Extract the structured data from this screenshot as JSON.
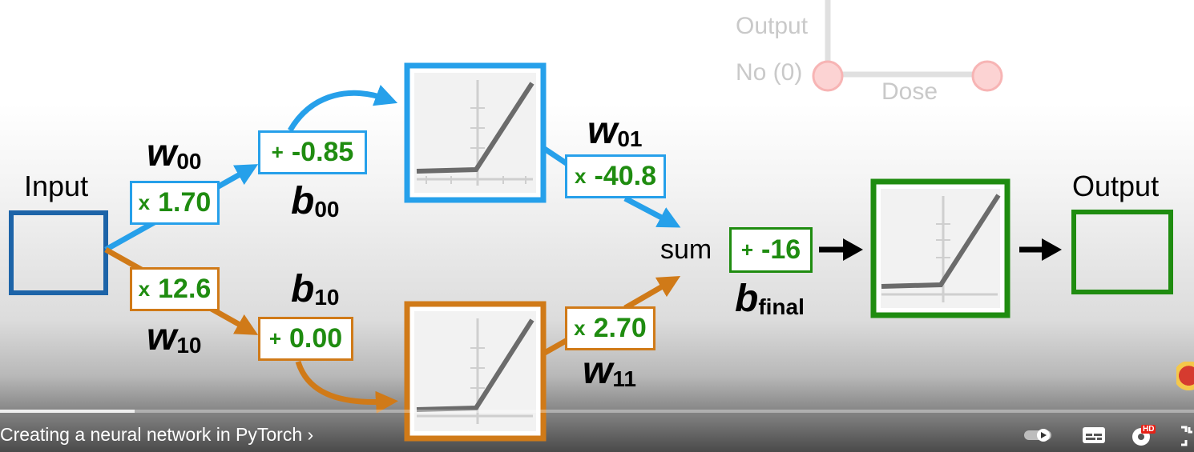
{
  "diagram": {
    "input_label": "Input",
    "output_label": "Output",
    "sum_label": "sum",
    "top": {
      "weight_in": {
        "op": "x",
        "value": "1.70"
      },
      "bias": {
        "op": "+",
        "value": "-0.85"
      },
      "weight_out": {
        "op": "x",
        "value": "-40.8"
      },
      "w_in_symbol": "w",
      "w_in_sub": "00",
      "b_symbol": "b",
      "b_sub": "00",
      "w_out_symbol": "w",
      "w_out_sub": "01"
    },
    "bottom": {
      "weight_in": {
        "op": "x",
        "value": "12.6"
      },
      "bias": {
        "op": "+",
        "value": "0.00"
      },
      "weight_out": {
        "op": "x",
        "value": "2.70"
      },
      "w_in_symbol": "w",
      "w_in_sub": "10",
      "b_symbol": "b",
      "b_sub": "10",
      "w_out_symbol": "w",
      "w_out_sub": "11"
    },
    "final_bias": {
      "op": "+",
      "value": "-16",
      "symbol": "b",
      "sub": "final"
    },
    "inset": {
      "axis_label": "Output",
      "tick_label": "No (0)",
      "x_label": "Dose"
    },
    "colors": {
      "blue": "#26a0ea",
      "orange": "#d07a18",
      "green": "#1f8c10",
      "input": "#1d64a8"
    }
  },
  "player": {
    "chapter_title": "Creating a neural network in PyTorch",
    "chapter_chevron": "›",
    "expand_glyph": "⌄",
    "progress": 0.113,
    "hd_badge": "HD",
    "icons": [
      "autoplay-toggle-icon",
      "subtitles-icon",
      "settings-icon",
      "fullscreen-exit-icon"
    ]
  }
}
